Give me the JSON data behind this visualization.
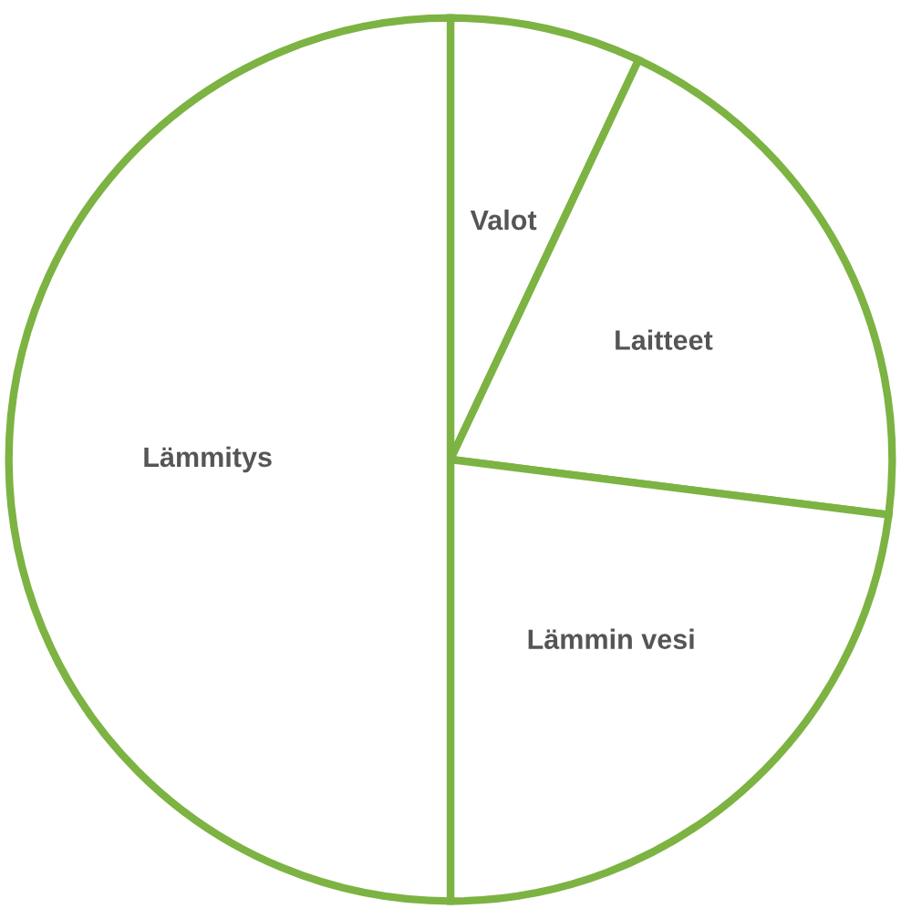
{
  "chart_data": {
    "type": "pie",
    "categories": [
      "Valot",
      "Laitteet",
      "Lämmin vesi",
      "Lämmitys"
    ],
    "values": [
      7,
      20,
      23,
      50
    ],
    "colors": [
      "#7cb342",
      "#7cb342",
      "#7cb342",
      "#7cb342"
    ]
  }
}
